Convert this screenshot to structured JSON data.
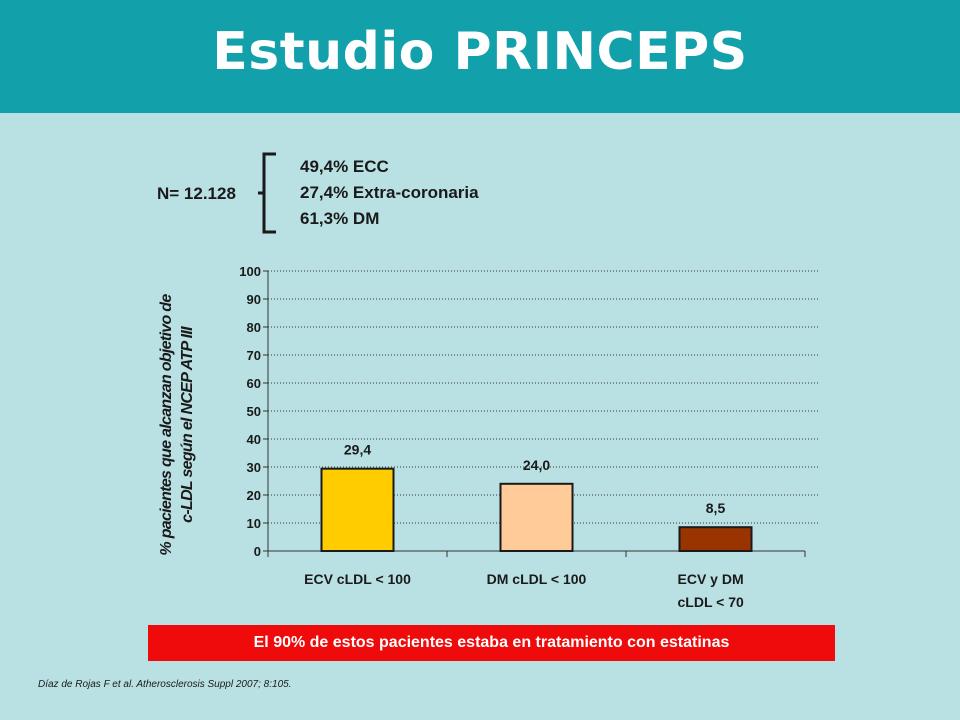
{
  "slide": {
    "title": "Estudio PRINCEPS",
    "n_label": "N= 12.128",
    "facts": [
      "49,4% ECC",
      "27,4% Extra-coronaria",
      "61,3% DM"
    ],
    "banner": "El 90% de estos pacientes estaba en tratamiento con estatinas",
    "citation": "Díaz de Rojas F et al. Atherosclerosis Suppl 2007; 8:105.",
    "colors": {
      "header": "#12a0ab",
      "background": "#b9e0e3",
      "banner": "#ef0b0b"
    }
  },
  "chart_data": {
    "type": "bar",
    "categories": [
      [
        "ECV cLDL < 100"
      ],
      [
        "DM cLDL < 100"
      ],
      [
        "ECV y DM",
        "cLDL < 70"
      ]
    ],
    "values": [
      29.4,
      24.0,
      8.5
    ],
    "value_labels": [
      "29,4",
      "24,0",
      "8,5"
    ],
    "bar_colors": [
      "#ffcc00",
      "#ffcc99",
      "#993300"
    ],
    "ylabel": [
      "% pacientes que alcanzan objetivo de",
      "c-LDL según el NCEP ATP III"
    ],
    "xlabel": "",
    "ylim": [
      0,
      100
    ],
    "yticks": [
      0,
      10,
      20,
      30,
      40,
      50,
      60,
      70,
      80,
      90,
      100
    ],
    "grid": "dotted-horizontal",
    "legend": "none"
  }
}
